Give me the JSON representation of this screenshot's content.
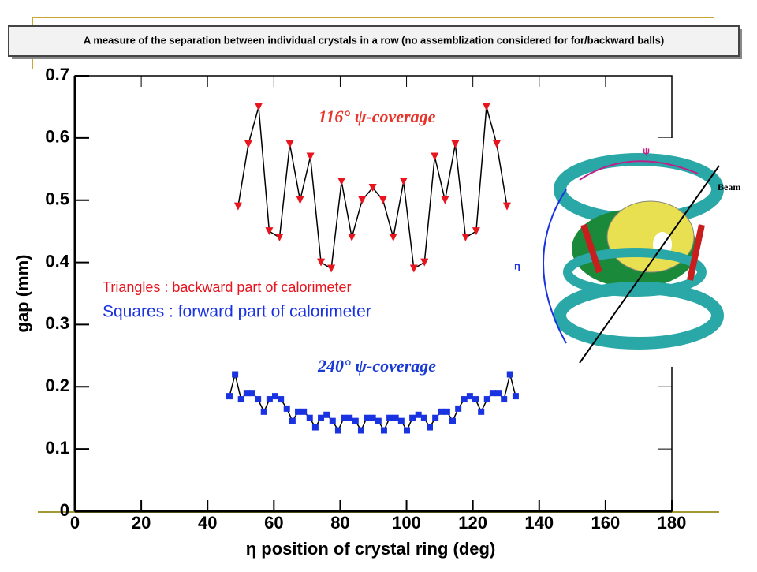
{
  "chart_data": {
    "type": "line",
    "title": "A measure of the separation between individual crystals in a row (no assemblization considered for for/backward balls)",
    "xlabel": "η position of crystal ring (deg)",
    "ylabel": "gap (mm)",
    "xlim": [
      0,
      180
    ],
    "ylim": [
      0,
      0.7
    ],
    "xticks": [
      0,
      20,
      40,
      60,
      80,
      100,
      120,
      140,
      160,
      180
    ],
    "yticks": [
      0,
      0.1,
      0.2,
      0.3,
      0.4,
      0.5,
      0.6,
      0.7
    ],
    "line_color": "#000000",
    "series": [
      {
        "name": "Triangles : backward part of calorimeter",
        "color": "#e8141e",
        "marker": "triangle-down",
        "x": [
          49.2,
          52.3,
          55.4,
          58.6,
          61.7,
          64.8,
          67.9,
          71.0,
          74.2,
          77.3,
          80.4,
          83.5,
          86.6,
          89.8,
          92.9,
          96.0,
          99.1,
          102.2,
          105.4,
          108.5,
          111.6,
          114.7,
          117.8,
          121.0,
          124.1,
          127.2,
          130.3
        ],
        "values": [
          0.49,
          0.59,
          0.65,
          0.45,
          0.44,
          0.59,
          0.5,
          0.57,
          0.4,
          0.39,
          0.53,
          0.44,
          0.5,
          0.52,
          0.5,
          0.44,
          0.53,
          0.39,
          0.4,
          0.57,
          0.5,
          0.59,
          0.44,
          0.45,
          0.65,
          0.59,
          0.49
        ]
      },
      {
        "name": "Squares : forward part of calorimeter",
        "color": "#1a33e0",
        "marker": "square",
        "x": [
          46.6,
          48.3,
          50.1,
          51.8,
          53.5,
          55.2,
          57.0,
          58.7,
          60.4,
          62.1,
          63.9,
          65.6,
          67.3,
          69.0,
          70.8,
          72.5,
          74.2,
          75.9,
          77.7,
          79.4,
          81.1,
          82.8,
          84.6,
          86.3,
          88.0,
          89.8,
          91.5,
          93.2,
          94.9,
          96.7,
          98.4,
          100.1,
          101.8,
          103.6,
          105.3,
          107.0,
          108.7,
          110.5,
          112.2,
          113.9,
          115.6,
          117.4,
          119.1,
          120.8,
          122.5,
          124.3,
          126.0,
          127.7,
          129.4,
          131.2,
          132.9
        ],
        "values": [
          0.185,
          0.22,
          0.18,
          0.19,
          0.19,
          0.18,
          0.16,
          0.18,
          0.185,
          0.18,
          0.165,
          0.145,
          0.16,
          0.16,
          0.15,
          0.135,
          0.15,
          0.155,
          0.145,
          0.13,
          0.15,
          0.15,
          0.145,
          0.13,
          0.15,
          0.15,
          0.145,
          0.13,
          0.15,
          0.15,
          0.145,
          0.13,
          0.15,
          0.155,
          0.15,
          0.135,
          0.15,
          0.16,
          0.16,
          0.145,
          0.165,
          0.18,
          0.185,
          0.18,
          0.16,
          0.18,
          0.19,
          0.19,
          0.18,
          0.22,
          0.185
        ]
      }
    ],
    "annotations": [
      "116° ψ-coverage",
      "240° ψ-coverage"
    ]
  },
  "figure": {
    "labels": [
      "ψ",
      "Beam",
      "η"
    ]
  }
}
